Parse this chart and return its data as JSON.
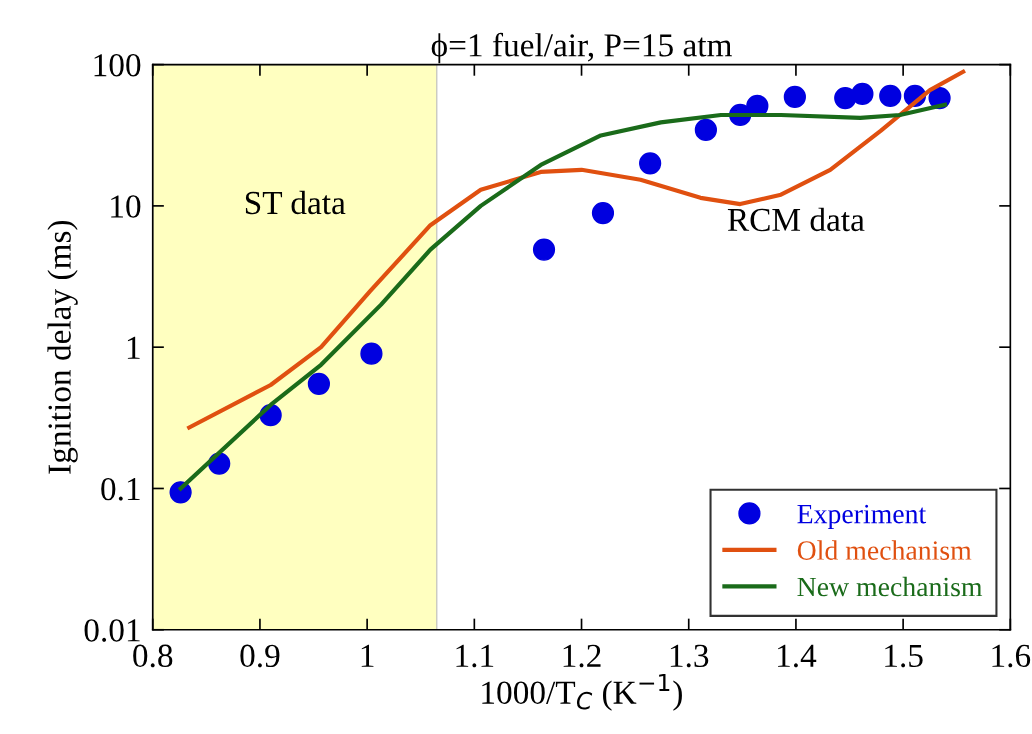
{
  "chart_data": {
    "type": "scatter",
    "title": "ϕ=1 fuel/air, P=15 atm",
    "xlabel": "1000/T$_{C}$ (K$^{−1}$)",
    "ylabel": "Ignition delay (ms)",
    "log": "y",
    "xlim": [
      0.8,
      1.6
    ],
    "ylim": [
      0.01,
      100
    ],
    "xticks": [
      0.8,
      0.9,
      1,
      1.1,
      1.2,
      1.3,
      1.4,
      1.5,
      1.6
    ],
    "yticks": [
      0.01,
      0.1,
      1,
      10,
      100
    ],
    "grid": false,
    "legend": "bottom right",
    "bands": [
      {
        "axis": "x",
        "from": 0.8,
        "to": 1.065,
        "label": "ST data",
        "color": "#ffffc0"
      }
    ],
    "annotations": [
      "RCM data"
    ],
    "series": [
      {
        "name": "Experiment",
        "color": "#0000e0",
        "marker": "circle",
        "x": [
          0.826,
          0.862,
          0.91,
          0.955,
          1.004,
          1.165,
          1.22,
          1.264,
          1.316,
          1.348,
          1.364,
          1.399,
          1.446,
          1.462,
          1.488,
          1.511,
          1.534
        ],
        "values": [
          0.094,
          0.15,
          0.33,
          0.55,
          0.9,
          4.9,
          8.9,
          20,
          34.5,
          44,
          51,
          59,
          58,
          62,
          60,
          60,
          58
        ]
      },
      {
        "name": "Old mechanism",
        "type": "line",
        "color": "#e05010",
        "x": [
          0.834,
          0.91,
          0.957,
          1.003,
          1.059,
          1.106,
          1.162,
          1.2,
          1.255,
          1.311,
          1.348,
          1.386,
          1.432,
          1.479,
          1.525,
          1.556
        ],
        "values": [
          0.27,
          0.54,
          1.0,
          2.5,
          7.3,
          13,
          17.4,
          18,
          15.3,
          11.4,
          10.3,
          12,
          18,
          34,
          66,
          89
        ]
      },
      {
        "name": "New mechanism",
        "type": "line",
        "color": "#1a6b1a",
        "x": [
          0.826,
          0.91,
          0.957,
          1.013,
          1.059,
          1.106,
          1.162,
          1.218,
          1.274,
          1.33,
          1.386,
          1.46,
          1.497,
          1.539
        ],
        "values": [
          0.1,
          0.39,
          0.75,
          2,
          4.9,
          10,
          19.5,
          31.5,
          39,
          44,
          44,
          42,
          44,
          52
        ]
      }
    ]
  }
}
